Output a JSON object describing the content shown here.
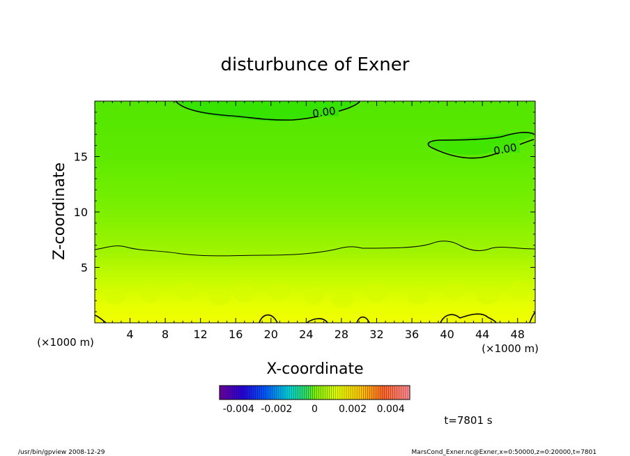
{
  "chart_data": {
    "type": "heatmap",
    "title": "disturbunce of Exner",
    "xlabel": "X-coordinate",
    "ylabel": "Z-coordinate",
    "x_unit_left": "(×1000 m)",
    "x_unit_right": "(×1000 m)",
    "xlim": [
      0,
      50
    ],
    "ylim": [
      0,
      20
    ],
    "x_ticks": [
      4,
      8,
      12,
      16,
      20,
      24,
      28,
      32,
      36,
      40,
      44,
      48
    ],
    "y_ticks": [
      5,
      10,
      15
    ],
    "contour_labels": [
      "0.00",
      "0.00"
    ],
    "colorbar": {
      "range": [
        -0.005,
        0.005
      ],
      "tick_labels": [
        "-0.004",
        "-0.002",
        "0",
        "0.002",
        "0.004"
      ]
    },
    "time_label": "t=7801 s",
    "footer_left": "/usr/bin/gpview   2008-12-29",
    "footer_right": "MarsCond_Exner.nc@Exner,x=0:50000,z=0:20000,t=7801",
    "colors": {
      "surface_yellow": "#f2ff00",
      "mid_green": "#7cf000",
      "upper_green": "#3fe400"
    }
  }
}
